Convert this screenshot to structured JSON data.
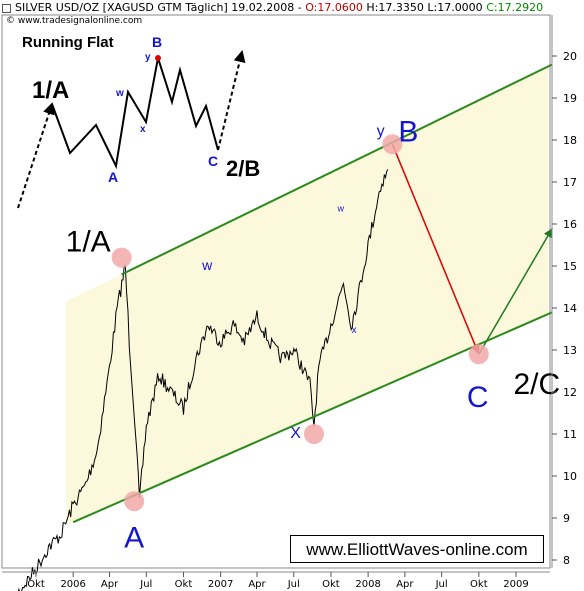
{
  "header": {
    "instrument": "SILVER USD/OZ [XAGUSD GTM",
    "period": "Täglich] 19.02.2008",
    "open": "O:17.0600",
    "high": "H:17.3350",
    "low": "L:17.0000",
    "close": "C:17.2920"
  },
  "copyright": "© www.tradesignalonline.com",
  "inset": {
    "title": "Running Flat",
    "labels": [
      "1/A",
      "A",
      "w",
      "x",
      "y",
      "B",
      "C",
      "2/B"
    ]
  },
  "brand_box": "www.ElliottWaves-online.com",
  "wave_labels": [
    "1/A",
    "A",
    "w",
    "x",
    "w",
    "y",
    "B",
    "C",
    "2/C",
    "X"
  ],
  "colors": {
    "price": "#000000",
    "channel": "#2a8a1a",
    "channel_fill": "#fbf8dc",
    "projection_down": "#e00000",
    "projection_up": "#1f7a1f",
    "wave_blue": "#1515d0",
    "highlight": "#f2a8a8"
  },
  "chart_data": {
    "type": "line",
    "title": "SILVER USD/OZ [XAGUSD GTM Täglich] 19.02.2008",
    "ylim": [
      8,
      21
    ],
    "y_ticks": [
      8,
      9,
      10,
      11,
      12,
      13,
      14,
      15,
      16,
      17,
      18,
      19,
      20
    ],
    "x_ticks": [
      "Okt",
      "2006",
      "Apr",
      "Jul",
      "Okt",
      "2007",
      "Apr",
      "Jul",
      "Okt",
      "2008",
      "Apr",
      "Jul",
      "Okt",
      "2009"
    ],
    "x_tick_dates": [
      "2005-10",
      "2006-01",
      "2006-04",
      "2006-07",
      "2006-10",
      "2007-01",
      "2007-04",
      "2007-07",
      "2007-10",
      "2008-01",
      "2008-04",
      "2008-07",
      "2008-10",
      "2009-01"
    ],
    "price_series": {
      "name": "",
      "points": [
        [
          "2005-08",
          7.0
        ],
        [
          "2005-09",
          7.4
        ],
        [
          "2005-10",
          7.8
        ],
        [
          "2005-11",
          8.3
        ],
        [
          "2005-12",
          8.6
        ],
        [
          "2006-01",
          9.3
        ],
        [
          "2006-02",
          9.8
        ],
        [
          "2006-03",
          10.6
        ],
        [
          "2006-04",
          12.6
        ],
        [
          "2006-04-20",
          14.0
        ],
        [
          "2006-05-10",
          15.0
        ],
        [
          "2006-05-20",
          13.2
        ],
        [
          "2006-06-05",
          11.0
        ],
        [
          "2006-06-14",
          9.4
        ],
        [
          "2006-07",
          11.2
        ],
        [
          "2006-08",
          12.4
        ],
        [
          "2006-09",
          12.0
        ],
        [
          "2006-10",
          11.6
        ],
        [
          "2006-11",
          12.8
        ],
        [
          "2006-12",
          13.6
        ],
        [
          "2007-01",
          13.2
        ],
        [
          "2007-02",
          13.6
        ],
        [
          "2007-03",
          13.2
        ],
        [
          "2007-04",
          13.8
        ],
        [
          "2007-05",
          13.2
        ],
        [
          "2007-06",
          12.8
        ],
        [
          "2007-07",
          13.0
        ],
        [
          "2007-08-10",
          12.2
        ],
        [
          "2007-08-20",
          11.2
        ],
        [
          "2007-09",
          12.6
        ],
        [
          "2007-10",
          13.6
        ],
        [
          "2007-11",
          14.6
        ],
        [
          "2007-11-20",
          13.6
        ],
        [
          "2007-12",
          14.0
        ],
        [
          "2008-01",
          15.5
        ],
        [
          "2008-01-25",
          16.6
        ],
        [
          "2008-02",
          16.9
        ],
        [
          "2008-02-19",
          17.3
        ]
      ]
    },
    "channel_lines": [
      {
        "name": "upper",
        "from": [
          "2006-05",
          14.8
        ],
        "to": [
          "2009-04",
          19.8
        ]
      },
      {
        "name": "lower",
        "from": [
          "2006-01",
          8.9
        ],
        "to": [
          "2009-04",
          13.9
        ]
      }
    ],
    "projection": [
      {
        "from": [
          "2008-03",
          17.9
        ],
        "to": [
          "2008-10",
          12.9
        ]
      },
      {
        "from": [
          "2008-10",
          12.9
        ],
        "to": [
          "2009-04",
          15.9
        ]
      }
    ],
    "annotations": [
      {
        "label": "1/A",
        "at": [
          "2006-05",
          15.2
        ]
      },
      {
        "label": "A",
        "at": [
          "2006-06",
          9.3
        ]
      },
      {
        "label": "w",
        "at": [
          "2006-12",
          14.9
        ]
      },
      {
        "label": "X",
        "at": [
          "2007-08",
          11.0
        ]
      },
      {
        "label": "w",
        "at": [
          "2007-11",
          16.3
        ]
      },
      {
        "label": "x",
        "at": [
          "2007-12",
          13.4
        ]
      },
      {
        "label": "y",
        "at": [
          "2008-02",
          18.1
        ]
      },
      {
        "label": "B",
        "at": [
          "2008-03",
          18.2
        ]
      },
      {
        "label": "C",
        "at": [
          "2008-10",
          12.6
        ]
      },
      {
        "label": "2/C",
        "at": [
          "2008-12",
          12.9
        ]
      }
    ],
    "grid": false
  }
}
